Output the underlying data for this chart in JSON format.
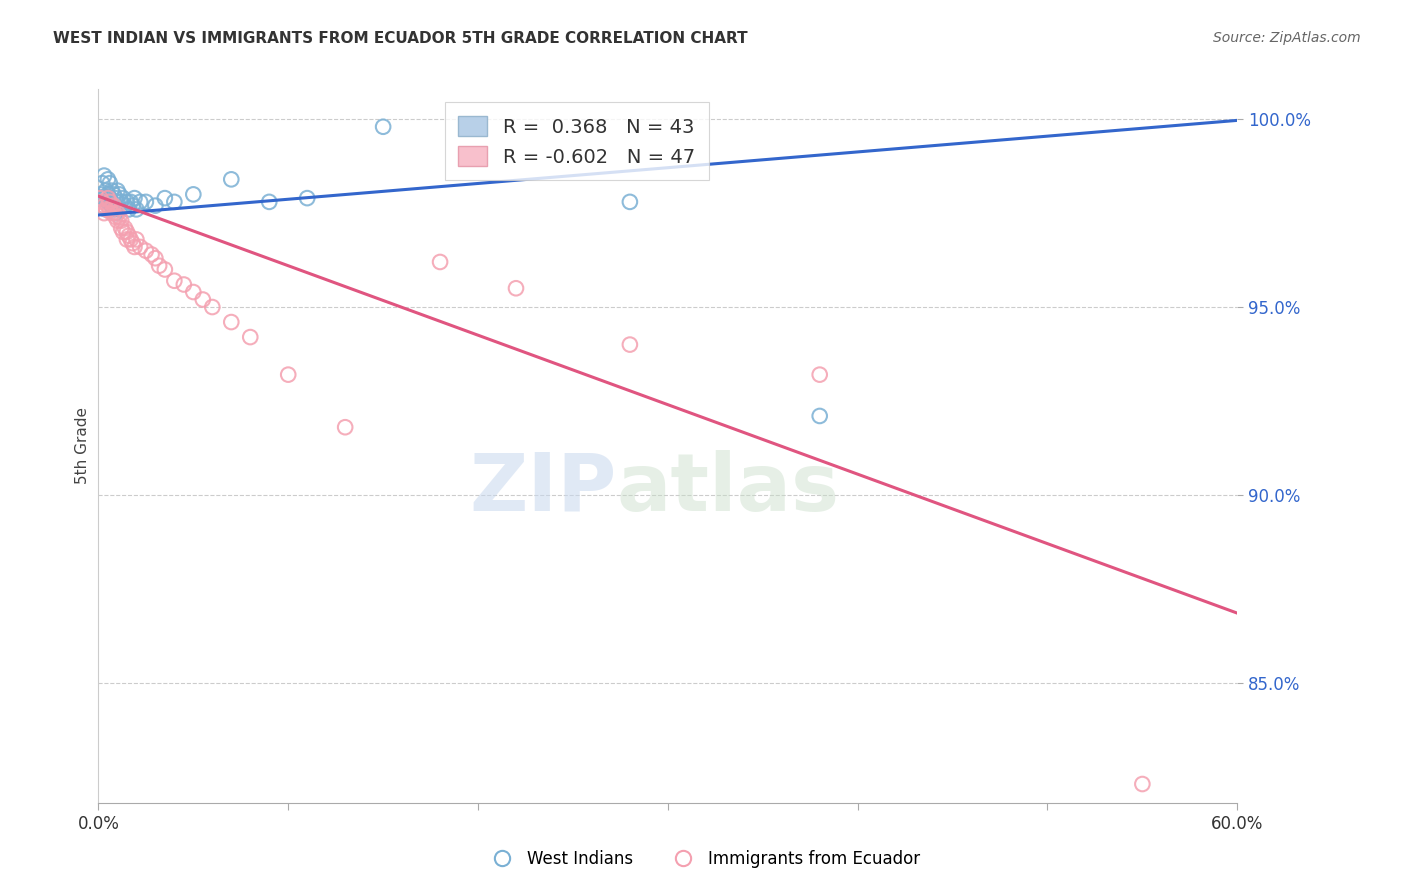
{
  "title": "WEST INDIAN VS IMMIGRANTS FROM ECUADOR 5TH GRADE CORRELATION CHART",
  "source": "Source: ZipAtlas.com",
  "ylabel": "5th Grade",
  "xlim": [
    0.0,
    0.6
  ],
  "ylim": [
    0.818,
    1.008
  ],
  "y_ticks": [
    0.85,
    0.9,
    0.95,
    1.0
  ],
  "y_tick_labels": [
    "85.0%",
    "90.0%",
    "95.0%",
    "100.0%"
  ],
  "grid_color": "#cccccc",
  "background_color": "#ffffff",
  "blue_color": "#7ab0d4",
  "pink_color": "#f4a0b0",
  "blue_line_color": "#3366cc",
  "pink_line_color": "#e05580",
  "legend_blue_R": "0.368",
  "legend_blue_N": "43",
  "legend_pink_R": "-0.602",
  "legend_pink_N": "47",
  "watermark_zip": "ZIP",
  "watermark_atlas": "atlas",
  "blue_line_y_intercept": 0.9745,
  "blue_line_slope": 0.042,
  "pink_line_y_intercept": 0.9795,
  "pink_line_slope": -0.185,
  "blue_scatter_x": [
    0.001,
    0.002,
    0.002,
    0.003,
    0.003,
    0.004,
    0.004,
    0.005,
    0.005,
    0.005,
    0.006,
    0.006,
    0.007,
    0.007,
    0.008,
    0.008,
    0.009,
    0.009,
    0.01,
    0.01,
    0.011,
    0.011,
    0.012,
    0.013,
    0.014,
    0.015,
    0.016,
    0.017,
    0.018,
    0.019,
    0.02,
    0.022,
    0.025,
    0.03,
    0.035,
    0.04,
    0.05,
    0.07,
    0.09,
    0.11,
    0.15,
    0.28,
    0.38
  ],
  "blue_scatter_y": [
    0.98,
    0.983,
    0.977,
    0.985,
    0.979,
    0.981,
    0.976,
    0.984,
    0.98,
    0.978,
    0.983,
    0.979,
    0.981,
    0.977,
    0.98,
    0.976,
    0.979,
    0.975,
    0.981,
    0.978,
    0.98,
    0.976,
    0.978,
    0.979,
    0.977,
    0.978,
    0.976,
    0.978,
    0.977,
    0.979,
    0.976,
    0.978,
    0.978,
    0.977,
    0.979,
    0.978,
    0.98,
    0.984,
    0.978,
    0.979,
    0.998,
    0.978,
    0.921
  ],
  "pink_scatter_x": [
    0.001,
    0.002,
    0.003,
    0.003,
    0.004,
    0.005,
    0.005,
    0.006,
    0.006,
    0.007,
    0.008,
    0.008,
    0.009,
    0.01,
    0.01,
    0.011,
    0.012,
    0.012,
    0.013,
    0.014,
    0.015,
    0.015,
    0.016,
    0.017,
    0.018,
    0.019,
    0.02,
    0.022,
    0.025,
    0.028,
    0.03,
    0.032,
    0.035,
    0.04,
    0.045,
    0.05,
    0.055,
    0.06,
    0.07,
    0.08,
    0.1,
    0.13,
    0.18,
    0.22,
    0.28,
    0.38,
    0.55
  ],
  "pink_scatter_y": [
    0.979,
    0.978,
    0.977,
    0.975,
    0.976,
    0.979,
    0.977,
    0.978,
    0.976,
    0.975,
    0.977,
    0.975,
    0.974,
    0.975,
    0.973,
    0.974,
    0.973,
    0.971,
    0.97,
    0.971,
    0.97,
    0.968,
    0.969,
    0.968,
    0.967,
    0.966,
    0.968,
    0.966,
    0.965,
    0.964,
    0.963,
    0.961,
    0.96,
    0.957,
    0.956,
    0.954,
    0.952,
    0.95,
    0.946,
    0.942,
    0.932,
    0.918,
    0.962,
    0.955,
    0.94,
    0.932,
    0.823
  ]
}
